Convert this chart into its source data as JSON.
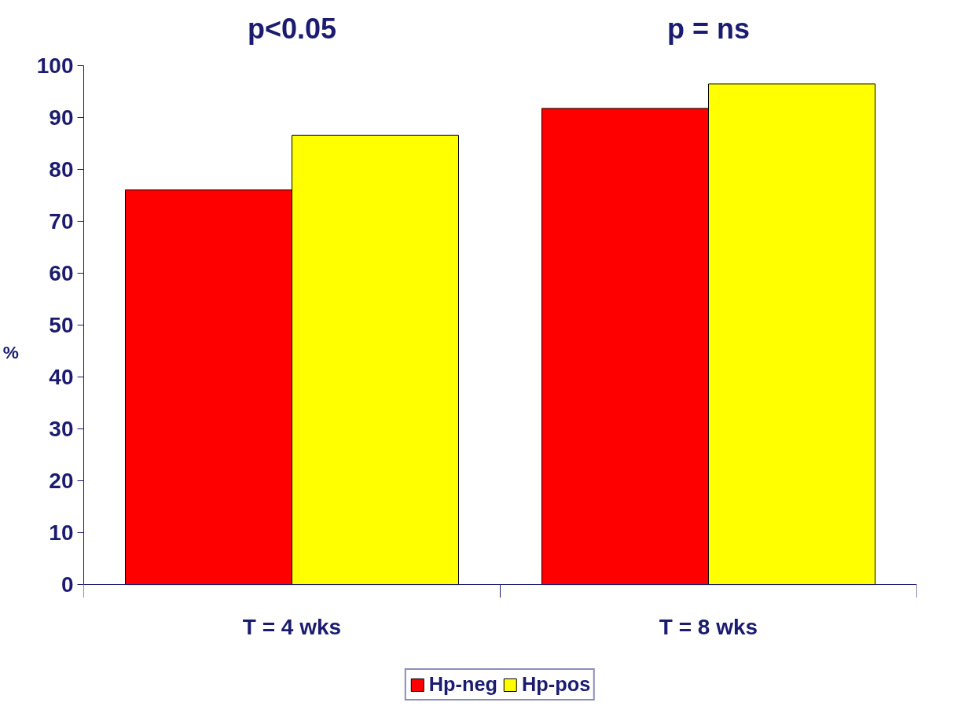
{
  "chart_data": {
    "type": "bar",
    "ylabel": "%",
    "categories": [
      "T = 4 wks",
      "T = 8 wks"
    ],
    "series": [
      {
        "name": "Hp-neg",
        "color": "#ff0000",
        "values": [
          76,
          91.7
        ]
      },
      {
        "name": "Hp-pos",
        "color": "#ffff00",
        "values": [
          86.5,
          96.4
        ]
      }
    ],
    "ylim": [
      0,
      100
    ],
    "yticks": [
      0,
      10,
      20,
      30,
      40,
      50,
      60,
      70,
      80,
      90,
      100
    ],
    "annotations": [
      "p<0.05",
      "p = ns"
    ],
    "grid": false,
    "legend": "bottom"
  }
}
